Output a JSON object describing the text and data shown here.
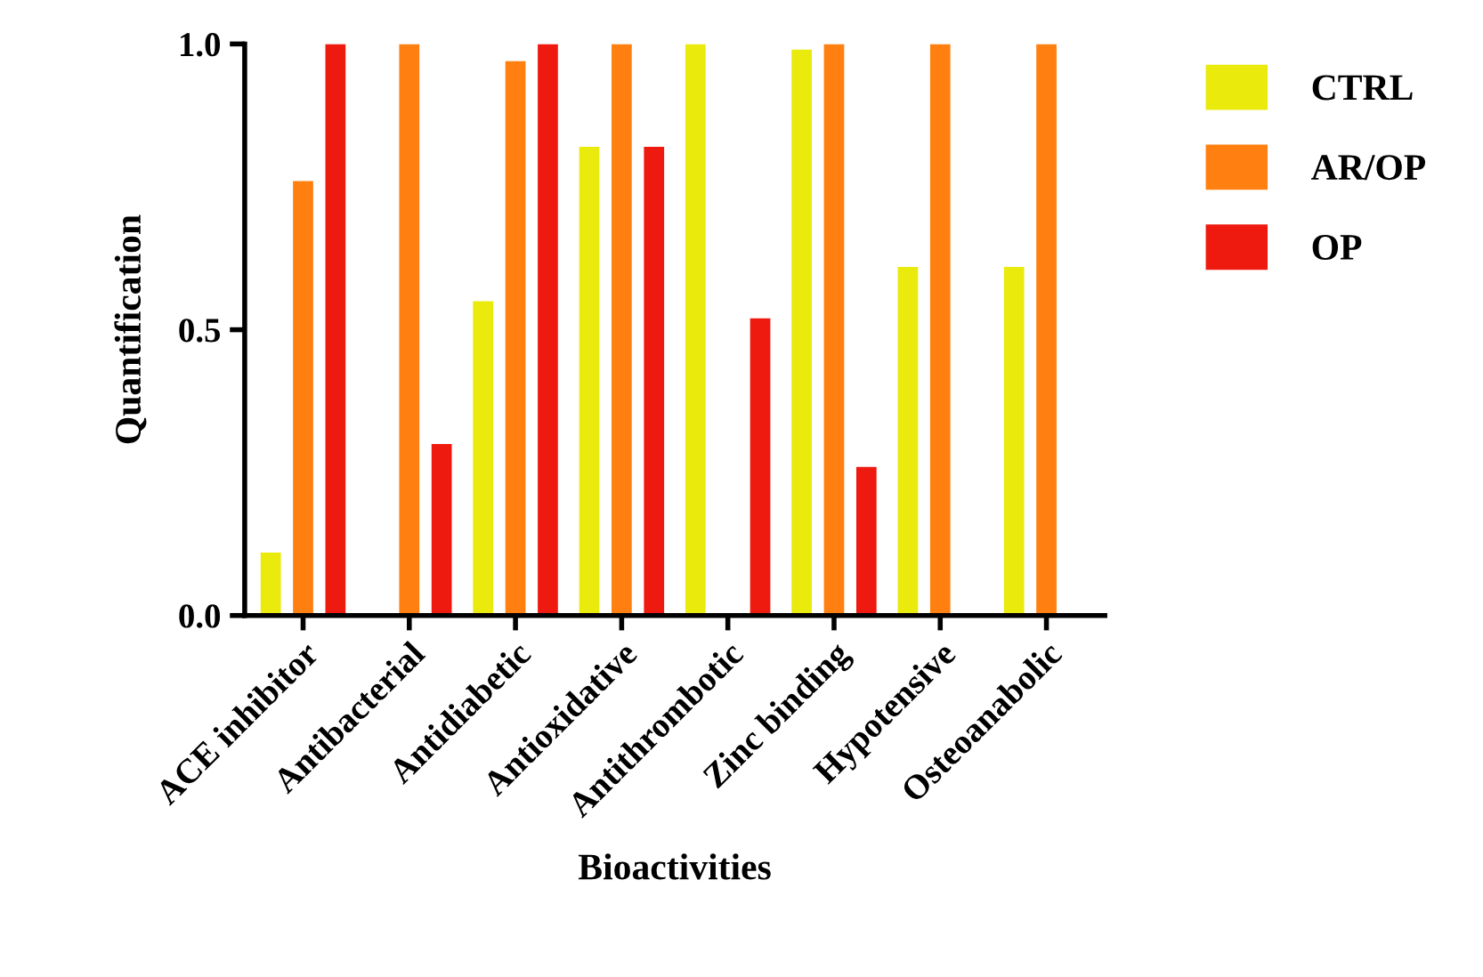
{
  "chart_data": {
    "type": "bar",
    "xlabel": "Bioactivities",
    "ylabel": "Quantification",
    "categories": [
      "ACE inhibitor",
      "Antibacterial",
      "Antidiabetic",
      "Antioxidative",
      "Antithrombotic",
      "Zinc binding",
      "Hypotensive",
      "Osteoanabolic"
    ],
    "series": [
      {
        "name": "CTRL",
        "color": "#eaea0c",
        "values": [
          0.11,
          0,
          0.55,
          0.82,
          1.0,
          0.99,
          0.61,
          0.61
        ]
      },
      {
        "name": "AR/OP",
        "color": "#ff8010",
        "values": [
          0.76,
          1.0,
          0.97,
          1.0,
          0,
          1.0,
          1.0,
          1.0
        ]
      },
      {
        "name": "OP",
        "color": "#ee1a10",
        "values": [
          1.0,
          0.3,
          1.0,
          0.82,
          0.52,
          0.26,
          0,
          0
        ]
      }
    ],
    "ylim": [
      0,
      1.0
    ],
    "yticks": [
      {
        "value": 0,
        "label": "0.0"
      },
      {
        "value": 0.5,
        "label": "0.5"
      },
      {
        "value": 1.0,
        "label": "1.0"
      }
    ],
    "grid": false,
    "legend": "top right"
  }
}
